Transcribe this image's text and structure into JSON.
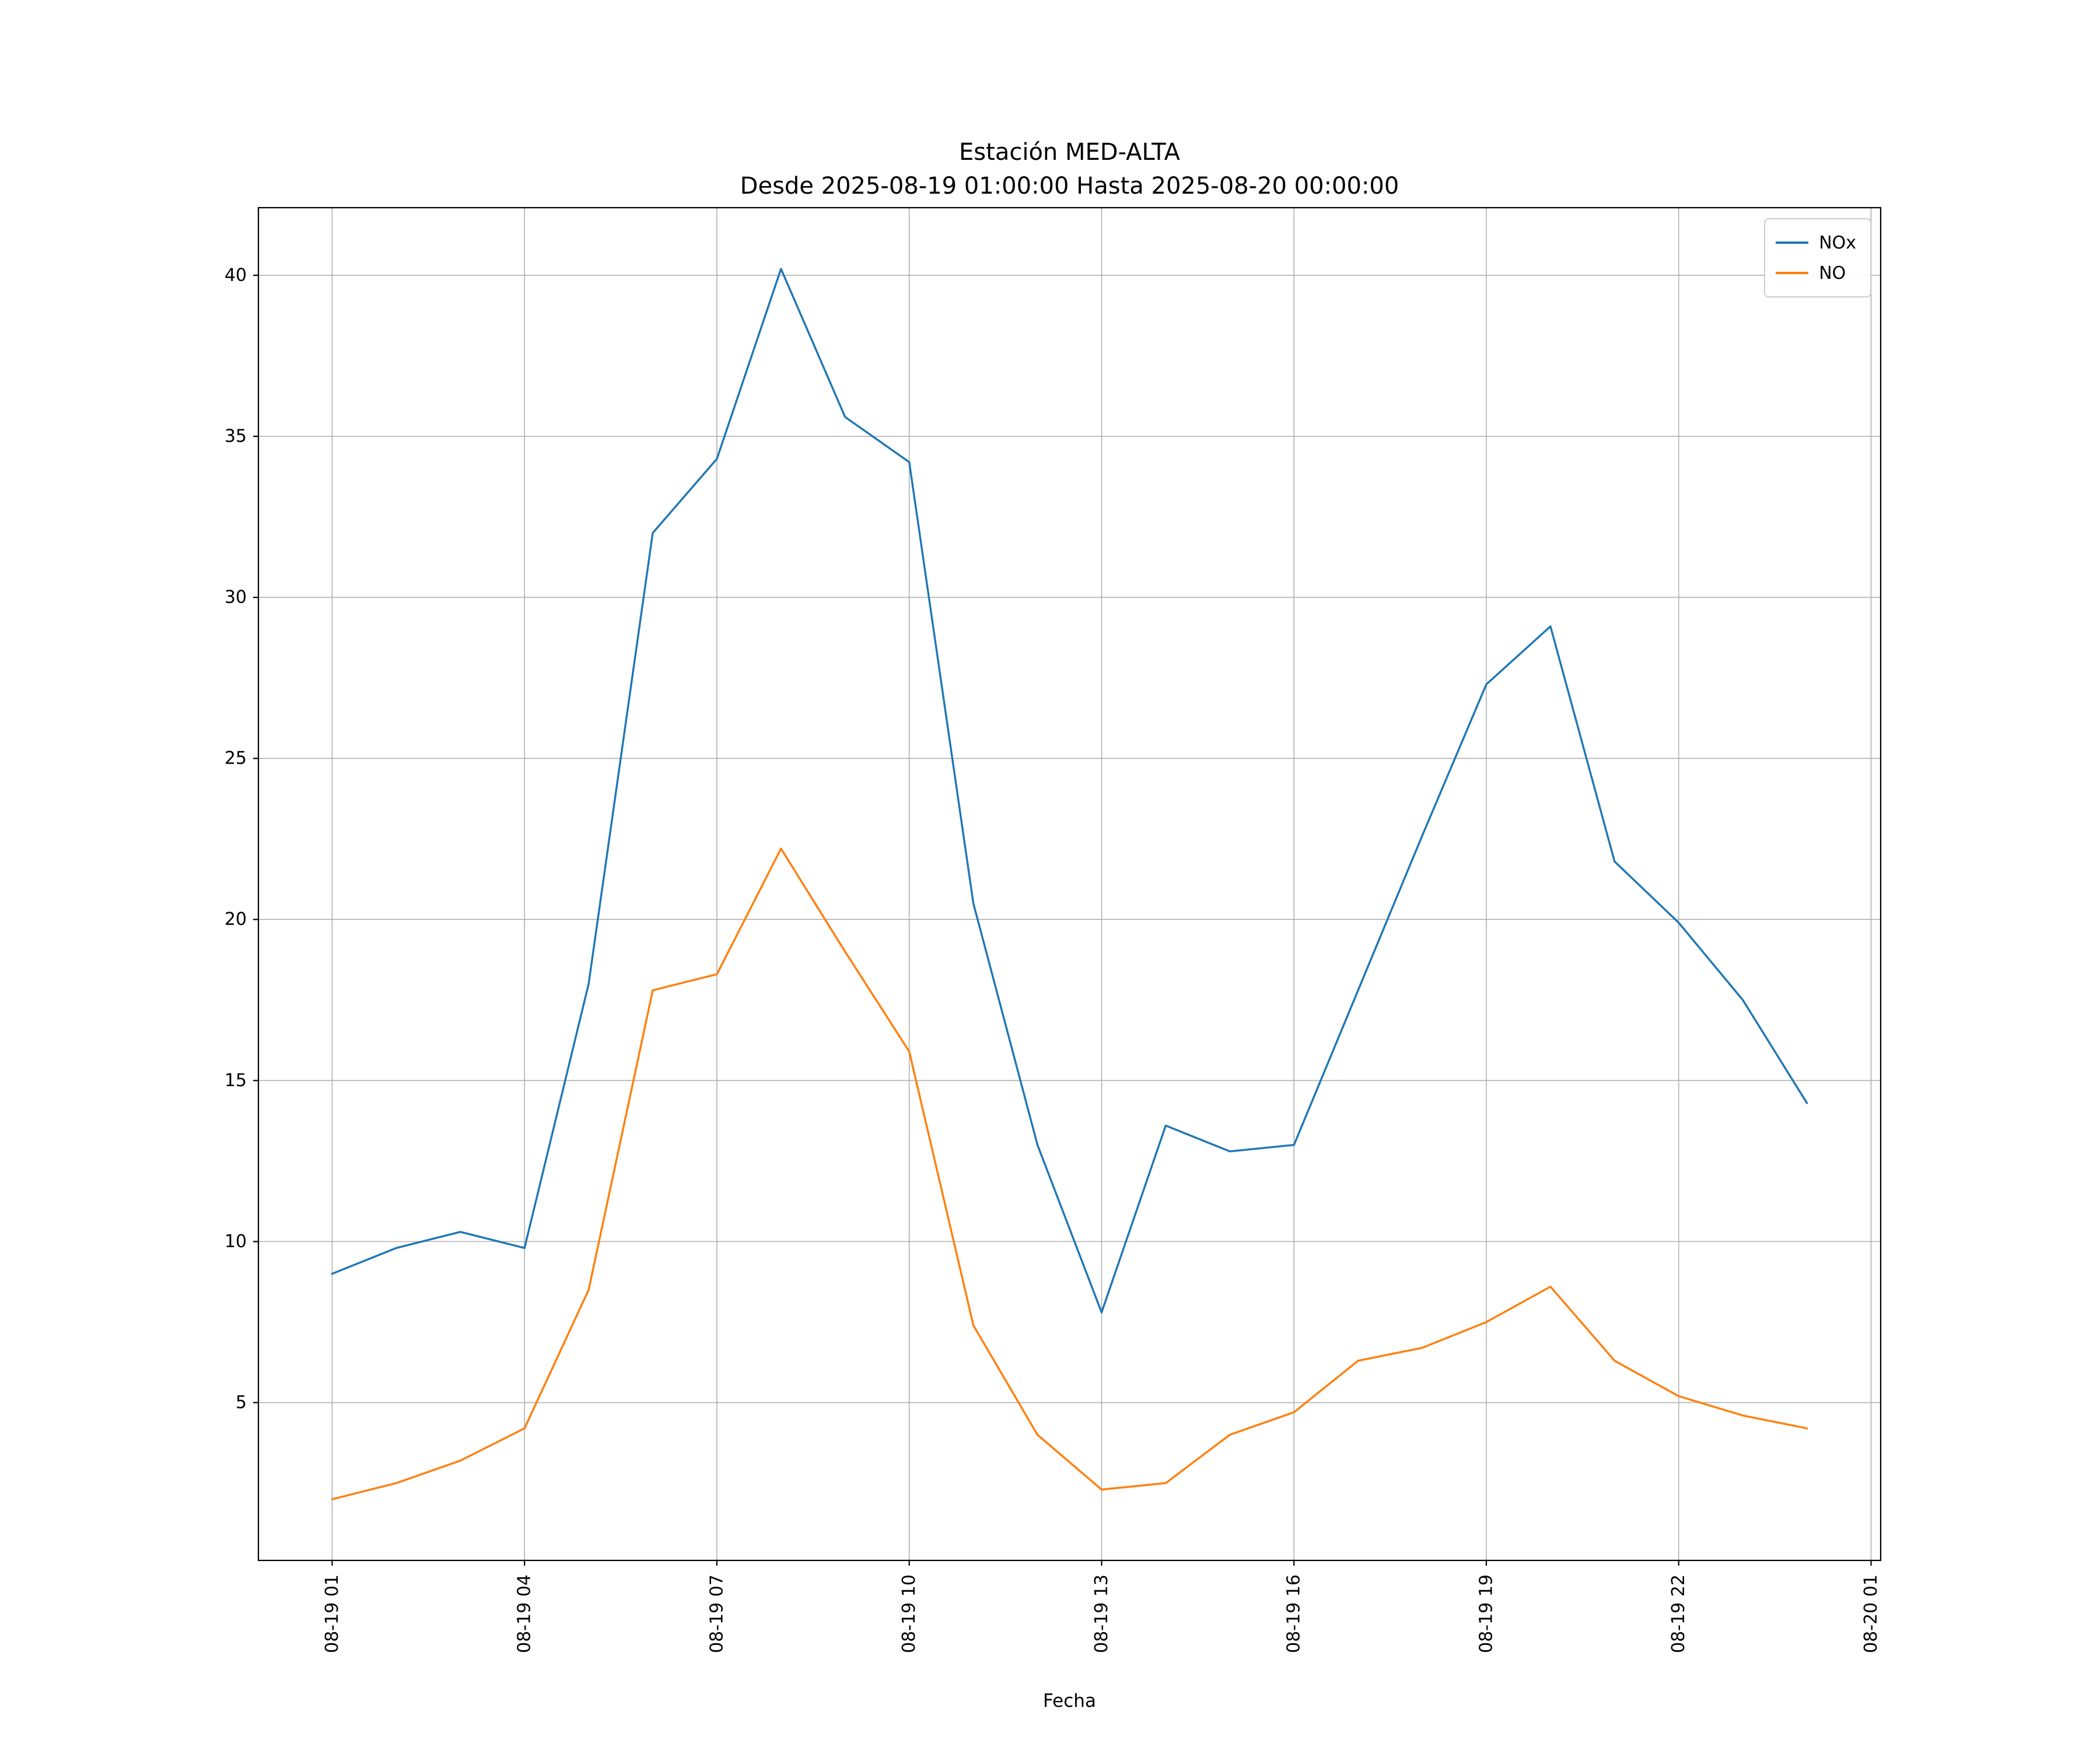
{
  "chart_data": {
    "type": "line",
    "title": "Estación MED-ALTA",
    "subtitle": "Desde 2025-08-19 01:00:00 Hasta 2025-08-20 00:00:00",
    "xlabel": "Fecha",
    "ylabel": "",
    "grid": true,
    "legend_position": "upper right",
    "x_hours": [
      1,
      2,
      3,
      4,
      5,
      6,
      7,
      8,
      9,
      10,
      11,
      12,
      13,
      14,
      15,
      16,
      17,
      18,
      19,
      20,
      21,
      22,
      23,
      24
    ],
    "series": [
      {
        "name": "NOx",
        "color": "#1f77b4",
        "values": [
          9.0,
          9.8,
          10.3,
          9.8,
          18.0,
          32.0,
          34.3,
          40.2,
          35.6,
          34.2,
          20.5,
          13.0,
          7.8,
          13.6,
          12.8,
          13.0,
          17.8,
          22.6,
          27.3,
          29.1,
          21.8,
          19.9,
          17.5,
          14.3
        ]
      },
      {
        "name": "NO",
        "color": "#ff7f0e",
        "values": [
          2.0,
          2.5,
          3.2,
          4.2,
          8.5,
          17.8,
          18.3,
          22.2,
          19.0,
          15.9,
          7.4,
          4.0,
          2.3,
          2.5,
          4.0,
          4.7,
          6.3,
          6.7,
          7.5,
          8.6,
          6.3,
          5.2,
          4.6,
          4.2
        ]
      }
    ],
    "xticks": [
      {
        "hour": 1,
        "label": "08-19 01"
      },
      {
        "hour": 4,
        "label": "08-19 04"
      },
      {
        "hour": 7,
        "label": "08-19 07"
      },
      {
        "hour": 10,
        "label": "08-19 10"
      },
      {
        "hour": 13,
        "label": "08-19 13"
      },
      {
        "hour": 16,
        "label": "08-19 16"
      },
      {
        "hour": 19,
        "label": "08-19 19"
      },
      {
        "hour": 22,
        "label": "08-19 22"
      },
      {
        "hour": 25,
        "label": "08-20 01"
      }
    ],
    "yticks": [
      5,
      10,
      15,
      20,
      25,
      30,
      35,
      40
    ],
    "xlim": [
      -0.15,
      25.15
    ],
    "ylim": [
      0.1,
      42.1
    ]
  },
  "colors": {
    "grid": "#b0b0b0",
    "axis": "#000000",
    "background": "#ffffff"
  }
}
